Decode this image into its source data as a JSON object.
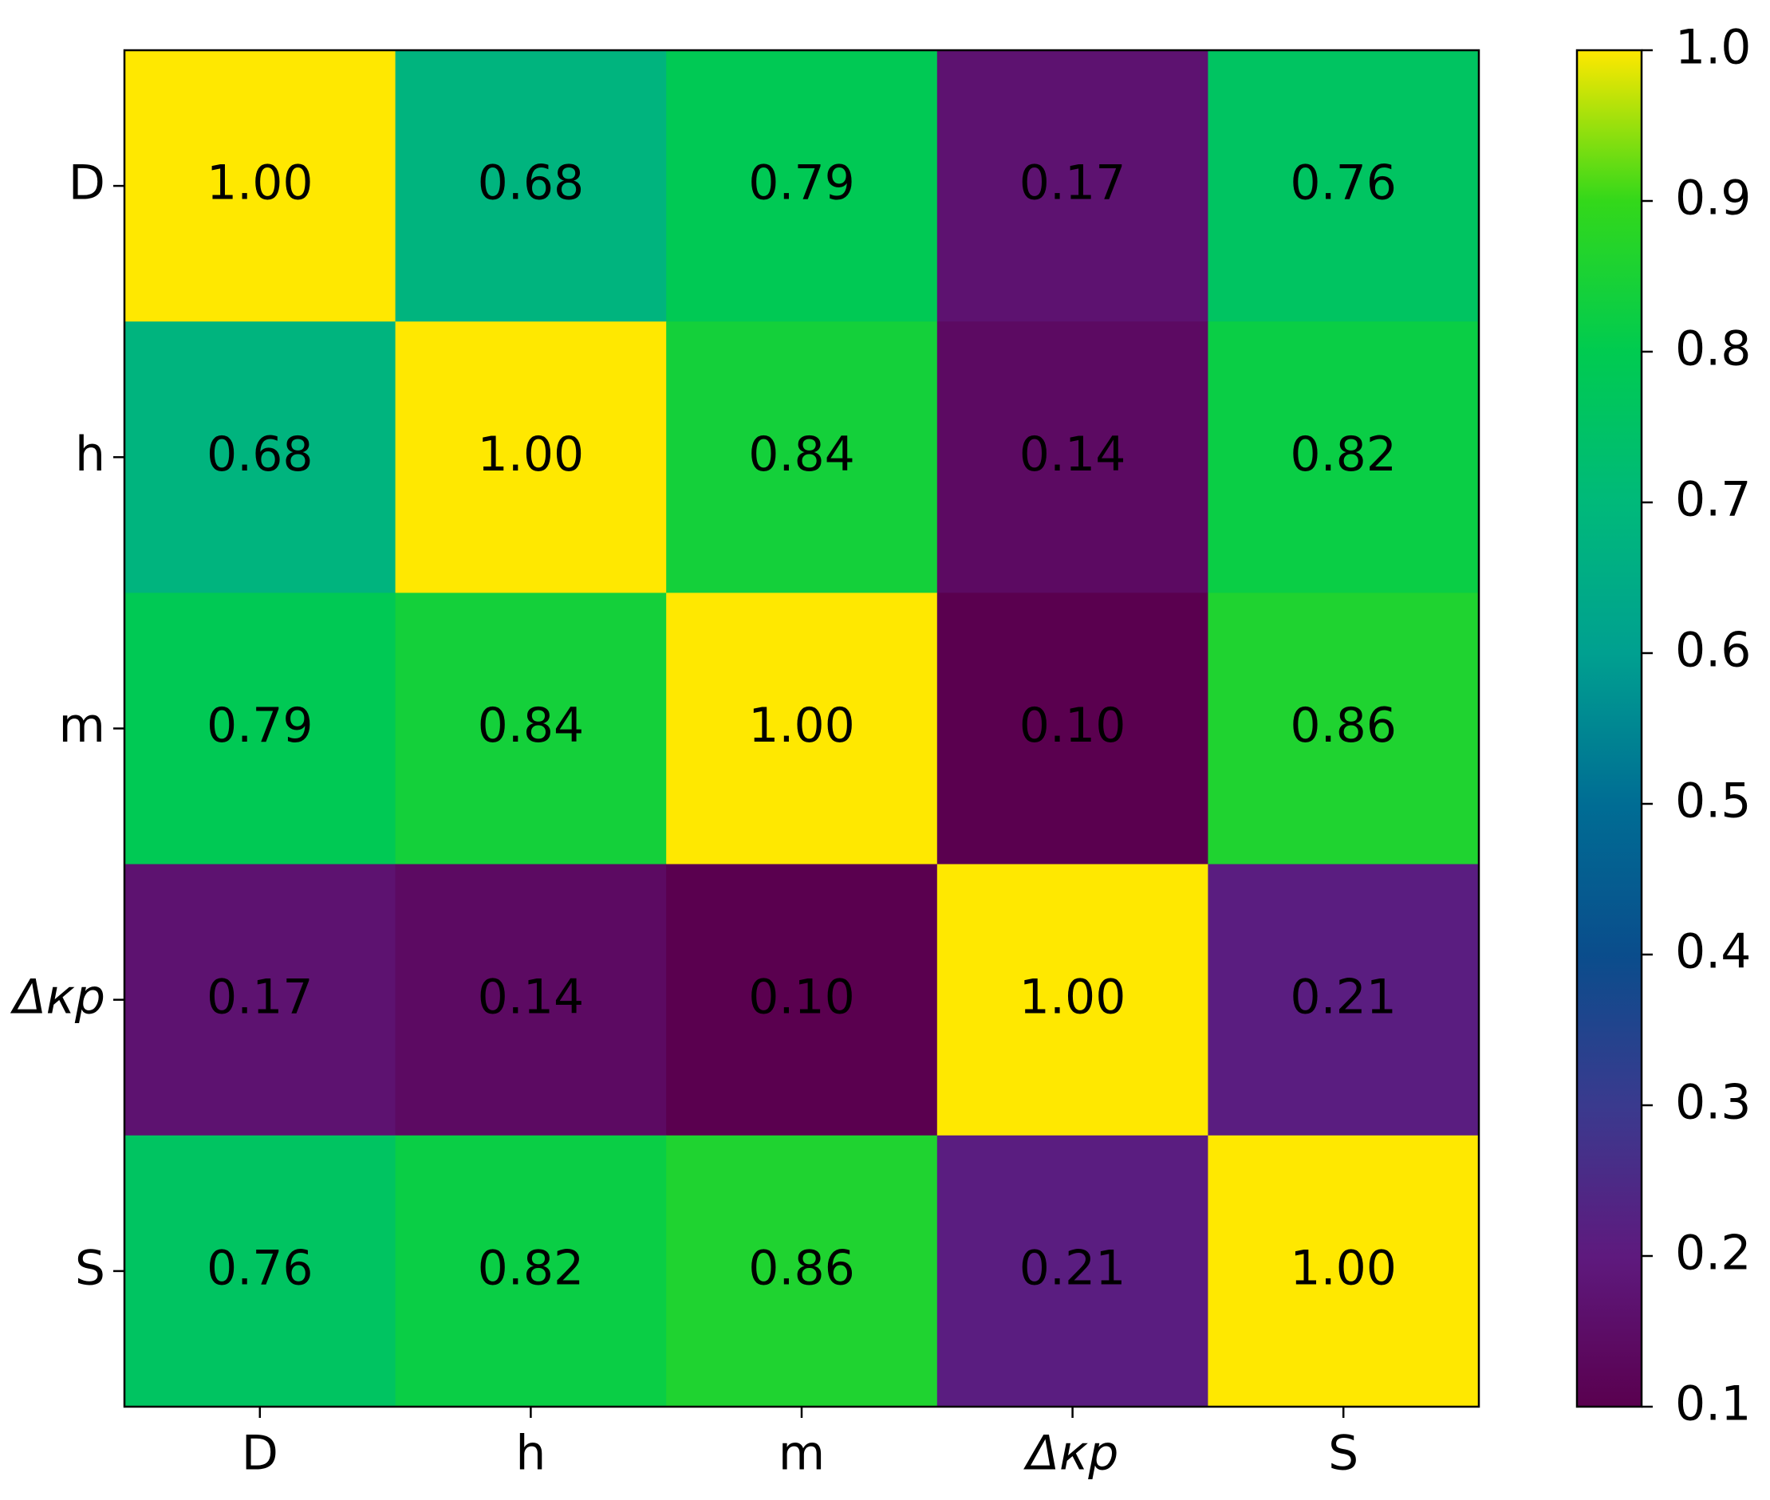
{
  "chart_data": {
    "type": "heatmap",
    "x_categories": [
      "D",
      "h",
      "m",
      "Δкр",
      "S"
    ],
    "y_categories": [
      "D",
      "h",
      "m",
      "Δкр",
      "S"
    ],
    "values": [
      [
        1,
        0.68,
        0.79,
        0.17,
        0.76
      ],
      [
        0.68,
        1,
        0.84,
        0.14,
        0.82
      ],
      [
        0.79,
        0.84,
        1,
        0.1,
        0.86
      ],
      [
        0.17,
        0.14,
        0.1,
        1,
        0.21
      ],
      [
        0.76,
        0.82,
        0.86,
        0.21,
        1
      ]
    ],
    "value_labels": [
      [
        "1.00",
        "0.68",
        "0.79",
        "0.17",
        "0.76"
      ],
      [
        "0.68",
        "1.00",
        "0.84",
        "0.14",
        "0.82"
      ],
      [
        "0.79",
        "0.84",
        "1.00",
        "0.10",
        "0.86"
      ],
      [
        "0.17",
        "0.14",
        "0.10",
        "1.00",
        "0.21"
      ],
      [
        "0.76",
        "0.82",
        "0.86",
        "0.21",
        "1.00"
      ]
    ],
    "zlim": [
      0.1,
      1
    ],
    "zticks": [
      0.1,
      0.2,
      0.3,
      0.4,
      0.5,
      0.6,
      0.7,
      0.8,
      0.9,
      {
        "value": 1,
        "label": "1.0"
      }
    ],
    "colorscale": [
      "#5a004f",
      "#5e1a7e",
      "#3a3a8e",
      "#0a4d8c",
      "#006d94",
      "#00a090",
      "#00b97a",
      "#00cb50",
      "#33d81a",
      "#ffe800"
    ]
  }
}
